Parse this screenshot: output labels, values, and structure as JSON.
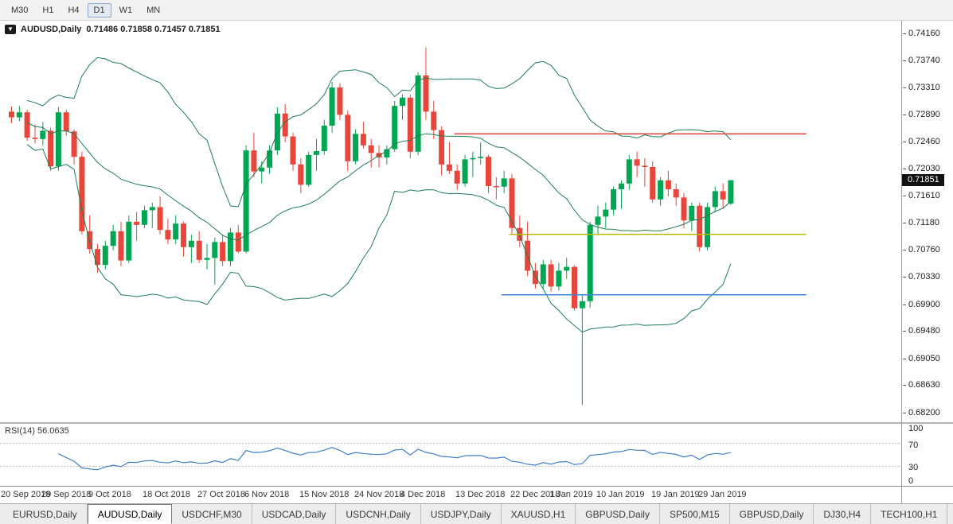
{
  "toolbar": {
    "timeframes": [
      {
        "label": "M30",
        "active": false
      },
      {
        "label": "H1",
        "active": false
      },
      {
        "label": "H4",
        "active": false
      },
      {
        "label": "D1",
        "active": true
      },
      {
        "label": "W1",
        "active": false
      },
      {
        "label": "MN",
        "active": false
      }
    ]
  },
  "chart": {
    "dropdown_icon_glyph": "▼",
    "title_symbol": "AUDUSD,Daily",
    "title_ohlc": "0.71486 0.71858 0.71457 0.71851",
    "current_price_label": "0.71851",
    "price_axis_labels": [
      "0.74160",
      "0.73740",
      "0.73310",
      "0.72890",
      "0.72460",
      "0.72030",
      "0.71610",
      "0.71180",
      "0.70760",
      "0.70330",
      "0.69900",
      "0.69480",
      "0.69050",
      "0.68630",
      "0.68200"
    ],
    "rsi_label": "RSI(14) 56.0635",
    "rsi_axis_labels": [
      "100",
      "70",
      "30",
      "0"
    ]
  },
  "chart_data": {
    "type": "candlestick",
    "symbol": "AUDUSD",
    "timeframe": "Daily",
    "y_axis": {
      "top": 0.7416,
      "bottom": 0.682,
      "step": 0.00425
    },
    "colors": {
      "bull": "#00a651",
      "bear": "#e8463a"
    },
    "x_labels": [
      {
        "text": "20 Sep 2018",
        "index": 0
      },
      {
        "text": "29 Sep 2018",
        "index": 7
      },
      {
        "text": "9 Oct 2018",
        "index": 13
      },
      {
        "text": "18 Oct 2018",
        "index": 20
      },
      {
        "text": "27 Oct 2018",
        "index": 27
      },
      {
        "text": "6 Nov 2018",
        "index": 33
      },
      {
        "text": "15 Nov 2018",
        "index": 40
      },
      {
        "text": "24 Nov 2018",
        "index": 47
      },
      {
        "text": "4 Dec 2018",
        "index": 53
      },
      {
        "text": "13 Dec 2018",
        "index": 60
      },
      {
        "text": "22 Dec 2018",
        "index": 67
      },
      {
        "text": "1 Jan 2019",
        "index": 72
      },
      {
        "text": "10 Jan 2019",
        "index": 78
      },
      {
        "text": "19 Jan 2019",
        "index": 85
      },
      {
        "text": "29 Jan 2019",
        "index": 91
      }
    ],
    "hlines": [
      {
        "price": 0.7258,
        "color": "#e03b3b",
        "from_index": 57,
        "to_index": 102
      },
      {
        "price": 0.71,
        "color": "#b7bb00",
        "from_index": 64,
        "to_index": 102
      },
      {
        "price": 0.7005,
        "color": "#3d86d8",
        "from_index": 63,
        "to_index": 102
      }
    ],
    "indicators": {
      "bollinger": {
        "period": 20,
        "deviations": 2,
        "color": "#1e7d52"
      },
      "rsi": {
        "period": 14,
        "current": 56.0635,
        "levels": [
          70,
          30
        ],
        "range": [
          0,
          100
        ],
        "color": "#3f7fca"
      }
    },
    "ohlc": [
      [
        0.7293,
        0.7301,
        0.7275,
        0.7284
      ],
      [
        0.7284,
        0.7302,
        0.7278,
        0.7292
      ],
      [
        0.7292,
        0.7296,
        0.7247,
        0.7252
      ],
      [
        0.7252,
        0.7273,
        0.7243,
        0.725
      ],
      [
        0.725,
        0.7277,
        0.724,
        0.7263
      ],
      [
        0.7263,
        0.7268,
        0.72,
        0.7207
      ],
      [
        0.7207,
        0.73,
        0.72,
        0.7292
      ],
      [
        0.7292,
        0.7296,
        0.7255,
        0.7262
      ],
      [
        0.7262,
        0.7265,
        0.721,
        0.7222
      ],
      [
        0.7222,
        0.723,
        0.71,
        0.7105
      ],
      [
        0.7105,
        0.713,
        0.707,
        0.7077
      ],
      [
        0.7077,
        0.7085,
        0.704,
        0.7052
      ],
      [
        0.7052,
        0.709,
        0.7045,
        0.7082
      ],
      [
        0.7082,
        0.7115,
        0.7075,
        0.7105
      ],
      [
        0.7105,
        0.712,
        0.705,
        0.7059
      ],
      [
        0.7059,
        0.713,
        0.7055,
        0.712
      ],
      [
        0.712,
        0.7135,
        0.709,
        0.7115
      ],
      [
        0.7115,
        0.7145,
        0.711,
        0.7138
      ],
      [
        0.7138,
        0.715,
        0.711,
        0.7143
      ],
      [
        0.7143,
        0.716,
        0.71,
        0.7107
      ],
      [
        0.7107,
        0.7125,
        0.7085,
        0.7092
      ],
      [
        0.7092,
        0.713,
        0.7085,
        0.7117
      ],
      [
        0.7117,
        0.712,
        0.7065,
        0.708
      ],
      [
        0.708,
        0.71,
        0.7055,
        0.709
      ],
      [
        0.709,
        0.7105,
        0.7055,
        0.706
      ],
      [
        0.706,
        0.7085,
        0.7045,
        0.7063
      ],
      [
        0.7063,
        0.7095,
        0.7021,
        0.7088
      ],
      [
        0.7088,
        0.71,
        0.705,
        0.7058
      ],
      [
        0.7058,
        0.711,
        0.705,
        0.7103
      ],
      [
        0.7103,
        0.7115,
        0.707,
        0.7073
      ],
      [
        0.7073,
        0.724,
        0.707,
        0.7232
      ],
      [
        0.7232,
        0.726,
        0.719,
        0.7199
      ],
      [
        0.7199,
        0.7215,
        0.718,
        0.7205
      ],
      [
        0.7205,
        0.724,
        0.7195,
        0.7232
      ],
      [
        0.7232,
        0.73,
        0.7225,
        0.729
      ],
      [
        0.729,
        0.7305,
        0.7245,
        0.7254
      ],
      [
        0.7254,
        0.726,
        0.72,
        0.721
      ],
      [
        0.721,
        0.722,
        0.7165,
        0.7178
      ],
      [
        0.7178,
        0.723,
        0.7175,
        0.7225
      ],
      [
        0.7225,
        0.725,
        0.72,
        0.7231
      ],
      [
        0.7231,
        0.728,
        0.7225,
        0.7271
      ],
      [
        0.7271,
        0.734,
        0.726,
        0.7331
      ],
      [
        0.7331,
        0.7338,
        0.728,
        0.7288
      ],
      [
        0.7288,
        0.7295,
        0.72,
        0.7215
      ],
      [
        0.7215,
        0.7265,
        0.721,
        0.7258
      ],
      [
        0.7258,
        0.7277,
        0.7235,
        0.724
      ],
      [
        0.724,
        0.725,
        0.7205,
        0.7228
      ],
      [
        0.7228,
        0.724,
        0.7205,
        0.7221
      ],
      [
        0.7221,
        0.724,
        0.721,
        0.7234
      ],
      [
        0.7234,
        0.731,
        0.723,
        0.7302
      ],
      [
        0.7302,
        0.732,
        0.728,
        0.7315
      ],
      [
        0.7315,
        0.732,
        0.722,
        0.723
      ],
      [
        0.723,
        0.7355,
        0.7225,
        0.735
      ],
      [
        0.735,
        0.7394,
        0.728,
        0.7293
      ],
      [
        0.7293,
        0.731,
        0.725,
        0.7264
      ],
      [
        0.7264,
        0.727,
        0.7192,
        0.721
      ],
      [
        0.721,
        0.7245,
        0.7195,
        0.72
      ],
      [
        0.72,
        0.721,
        0.717,
        0.718
      ],
      [
        0.718,
        0.7225,
        0.7175,
        0.7218
      ],
      [
        0.7218,
        0.723,
        0.719,
        0.722
      ],
      [
        0.722,
        0.7245,
        0.721,
        0.7222
      ],
      [
        0.7222,
        0.7225,
        0.7165,
        0.7176
      ],
      [
        0.7176,
        0.719,
        0.7155,
        0.7175
      ],
      [
        0.7175,
        0.72,
        0.7165,
        0.7188
      ],
      [
        0.7188,
        0.7195,
        0.71,
        0.711
      ],
      [
        0.711,
        0.713,
        0.708,
        0.709
      ],
      [
        0.709,
        0.712,
        0.7035,
        0.7043
      ],
      [
        0.7043,
        0.7055,
        0.7015,
        0.7022
      ],
      [
        0.7022,
        0.706,
        0.7015,
        0.7053
      ],
      [
        0.7053,
        0.706,
        0.701,
        0.7018
      ],
      [
        0.7018,
        0.7055,
        0.7012,
        0.7043
      ],
      [
        0.7043,
        0.7063,
        0.703,
        0.7049
      ],
      [
        0.7049,
        0.7052,
        0.698,
        0.6984
      ],
      [
        0.6984,
        0.7006,
        0.6832,
        0.6995
      ],
      [
        0.6995,
        0.712,
        0.6985,
        0.7115
      ],
      [
        0.7115,
        0.7145,
        0.71,
        0.7128
      ],
      [
        0.7128,
        0.715,
        0.711,
        0.7139
      ],
      [
        0.7139,
        0.7175,
        0.713,
        0.7171
      ],
      [
        0.7171,
        0.7185,
        0.714,
        0.718
      ],
      [
        0.718,
        0.7225,
        0.717,
        0.7218
      ],
      [
        0.7218,
        0.723,
        0.719,
        0.7208
      ],
      [
        0.7208,
        0.722,
        0.7175,
        0.7206
      ],
      [
        0.7206,
        0.7215,
        0.715,
        0.7155
      ],
      [
        0.7155,
        0.719,
        0.7145,
        0.7185
      ],
      [
        0.7185,
        0.72,
        0.716,
        0.7171
      ],
      [
        0.7171,
        0.718,
        0.7145,
        0.7158
      ],
      [
        0.7158,
        0.7165,
        0.711,
        0.7122
      ],
      [
        0.7122,
        0.715,
        0.7105,
        0.7145
      ],
      [
        0.7145,
        0.715,
        0.7073,
        0.708
      ],
      [
        0.708,
        0.715,
        0.7075,
        0.7143
      ],
      [
        0.7143,
        0.7175,
        0.7135,
        0.7168
      ],
      [
        0.7168,
        0.718,
        0.714,
        0.7155
      ],
      [
        0.71486,
        0.71858,
        0.71457,
        0.71851
      ]
    ]
  },
  "tabs": [
    {
      "label": "EURUSD,Daily",
      "active": false
    },
    {
      "label": "AUDUSD,Daily",
      "active": true
    },
    {
      "label": "USDCHF,M30",
      "active": false
    },
    {
      "label": "USDCAD,Daily",
      "active": false
    },
    {
      "label": "USDCNH,Daily",
      "active": false
    },
    {
      "label": "USDJPY,Daily",
      "active": false
    },
    {
      "label": "XAUUSD,H1",
      "active": false
    },
    {
      "label": "GBPUSD,Daily",
      "active": false
    },
    {
      "label": "SP500,M15",
      "active": false
    },
    {
      "label": "GBPUSD,Daily",
      "active": false
    },
    {
      "label": "DJ30,H4",
      "active": false
    },
    {
      "label": "TECH100,H1",
      "active": false
    }
  ]
}
